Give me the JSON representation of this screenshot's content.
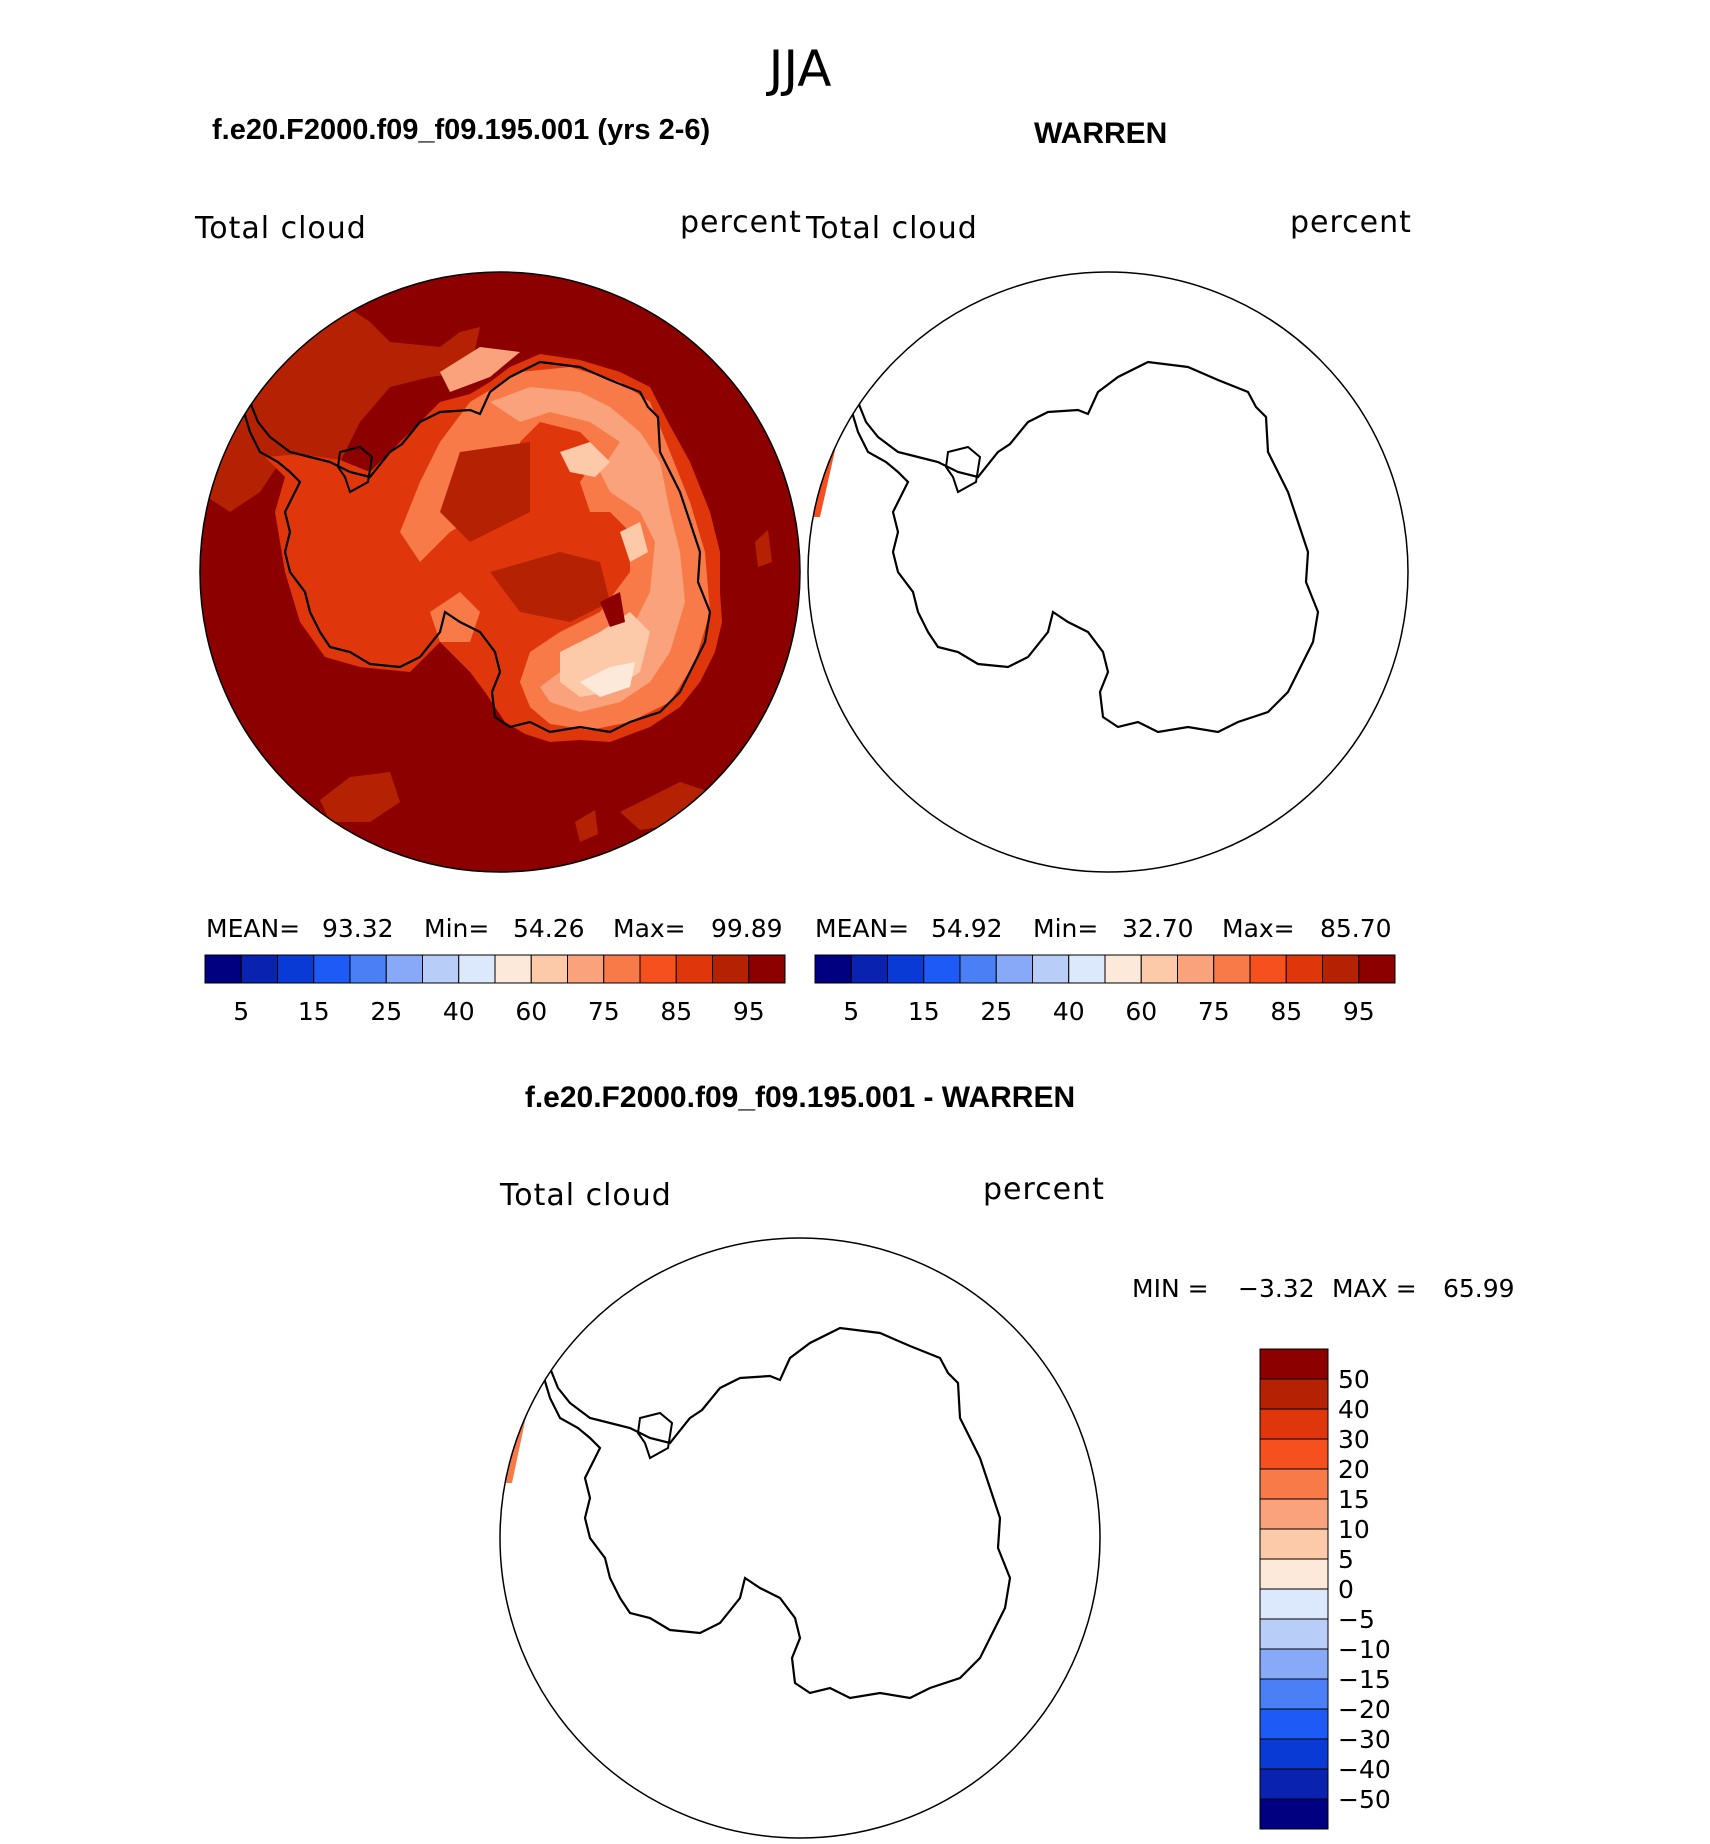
{
  "season": "JJA",
  "panels": {
    "model": {
      "title": "f.e20.F2000.f09_f09.195.001 (yrs 2-6)",
      "variable": "Total cloud",
      "units": "percent",
      "stats": {
        "mean_label": "MEAN=",
        "mean": "93.32",
        "min_label": "Min=",
        "min": "54.26",
        "max_label": "Max=",
        "max": "99.89"
      }
    },
    "obs": {
      "title": "WARREN",
      "variable": "Total cloud",
      "units": "percent",
      "stats": {
        "mean_label": "MEAN=",
        "mean": "54.92",
        "min_label": "Min=",
        "min": "32.70",
        "max_label": "Max=",
        "max": "85.70"
      }
    },
    "diff": {
      "title": "f.e20.F2000.f09_f09.195.001 - WARREN",
      "variable": "Total cloud",
      "units": "percent",
      "min_label": "MIN =",
      "min": "−3.32",
      "max_label": "MAX =",
      "max": "65.99"
    }
  },
  "colorbar_top": {
    "colors": [
      "#000080",
      "#0a22b0",
      "#0a3ad6",
      "#1e5af5",
      "#4a7ff5",
      "#88a8f8",
      "#b8cef8",
      "#dce8fb",
      "#fde9d9",
      "#fcc9a9",
      "#f9a27b",
      "#f97a49",
      "#f6501f",
      "#df360b",
      "#b52203",
      "#8c0000"
    ],
    "labels": [
      "5",
      "15",
      "25",
      "40",
      "60",
      "75",
      "85",
      "95"
    ]
  },
  "colorbar_diff": {
    "colors": [
      "#8c0000",
      "#b52203",
      "#df360b",
      "#f6501f",
      "#f97a49",
      "#f9a27b",
      "#fcc9a9",
      "#fde9d9",
      "#dce8fb",
      "#b8cef8",
      "#88a8f8",
      "#4a7ff5",
      "#1e5af5",
      "#0a3ad6",
      "#0a22b0",
      "#000080"
    ],
    "labels": [
      "50",
      "40",
      "30",
      "20",
      "15",
      "10",
      "5",
      "0",
      "−5",
      "−10",
      "−15",
      "−20",
      "−30",
      "−40",
      "−50"
    ]
  }
}
